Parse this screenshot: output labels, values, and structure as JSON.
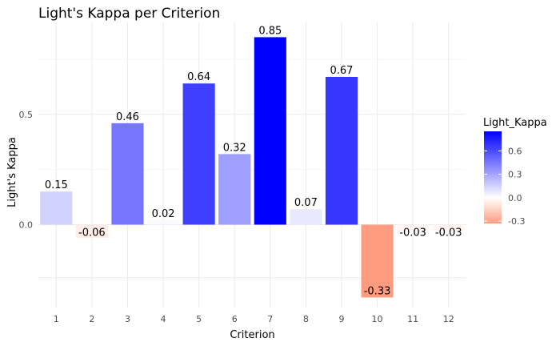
{
  "chart_data": {
    "type": "bar",
    "title": "Light's Kappa per Criterion",
    "xlabel": "Criterion",
    "ylabel": "Light's Kappa",
    "categories": [
      "1",
      "2",
      "3",
      "4",
      "5",
      "6",
      "7",
      "8",
      "9",
      "10",
      "11",
      "12"
    ],
    "values": [
      0.15,
      -0.06,
      0.46,
      0.02,
      0.64,
      0.32,
      0.85,
      0.07,
      0.67,
      -0.33,
      -0.03,
      -0.03
    ],
    "data_labels": [
      "0.15",
      "-0.06",
      "0.46",
      "0.02",
      "0.64",
      "0.32",
      "0.85",
      "0.07",
      "0.67",
      "-0.33",
      "-0.03",
      "-0.03"
    ],
    "ylim": [
      -0.34,
      0.87
    ],
    "yticks": [
      0.0,
      0.5
    ],
    "ytick_labels": [
      "0.0",
      "0.5"
    ],
    "grid": true,
    "legend": {
      "title": "Light_Kappa",
      "placement": "right",
      "range": [
        -0.33,
        0.85
      ],
      "ticks": [
        0.6,
        0.3,
        0.0,
        -0.3
      ],
      "tick_labels": [
        "0.6",
        "0.3",
        "0.0",
        "-0.3"
      ]
    },
    "color_scale": {
      "low": "#ff9b7f",
      "mid": "#ffffff",
      "high": "#0000ff"
    }
  }
}
